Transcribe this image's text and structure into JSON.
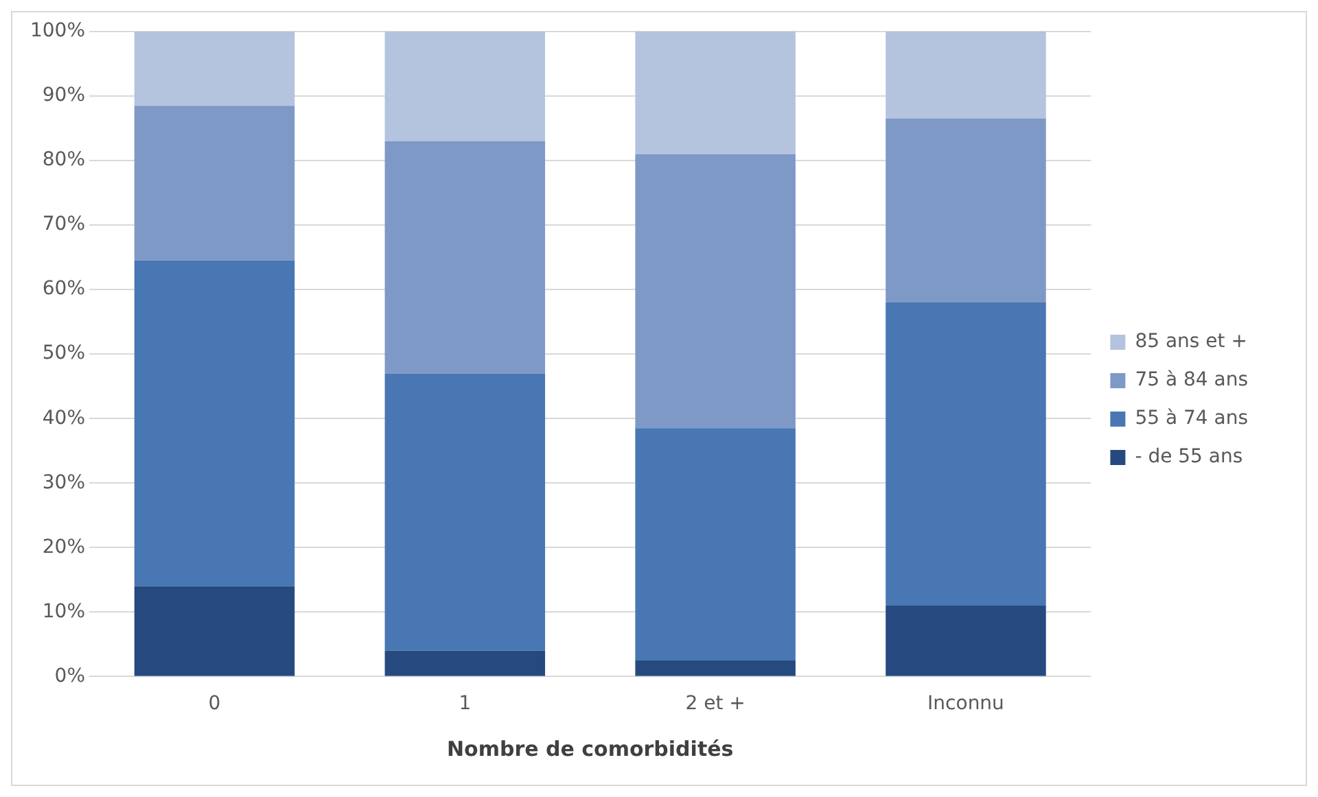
{
  "chart_data": {
    "type": "bar",
    "stacked": true,
    "xlabel": "Nombre de comorbidités",
    "categories": [
      "0",
      "1",
      "2 et +",
      "Inconnu"
    ],
    "series": [
      {
        "name": "- de 55 ans",
        "color": "#264a7f",
        "values": [
          14,
          4,
          2.5,
          11
        ]
      },
      {
        "name": "55 à 74 ans",
        "color": "#4877b3",
        "values": [
          50.5,
          43,
          36,
          47
        ]
      },
      {
        "name": "75 à 84 ans",
        "color": "#7e99c6",
        "values": [
          24,
          36,
          42.5,
          28.5
        ]
      },
      {
        "name": "85 ans et +",
        "color": "#b4c3de",
        "values": [
          11.5,
          17,
          19,
          13.5
        ]
      }
    ],
    "ylim": [
      0,
      100
    ],
    "yticks": [
      {
        "value": 0,
        "label": "0%"
      },
      {
        "value": 10,
        "label": "10%"
      },
      {
        "value": 20,
        "label": "20%"
      },
      {
        "value": 30,
        "label": "30%"
      },
      {
        "value": 40,
        "label": "40%"
      },
      {
        "value": 50,
        "label": "50%"
      },
      {
        "value": 60,
        "label": "60%"
      },
      {
        "value": 70,
        "label": "70%"
      },
      {
        "value": 80,
        "label": "80%"
      },
      {
        "value": 90,
        "label": "90%"
      },
      {
        "value": 100,
        "label": "100%"
      }
    ],
    "grid": "y",
    "legend": "right"
  }
}
